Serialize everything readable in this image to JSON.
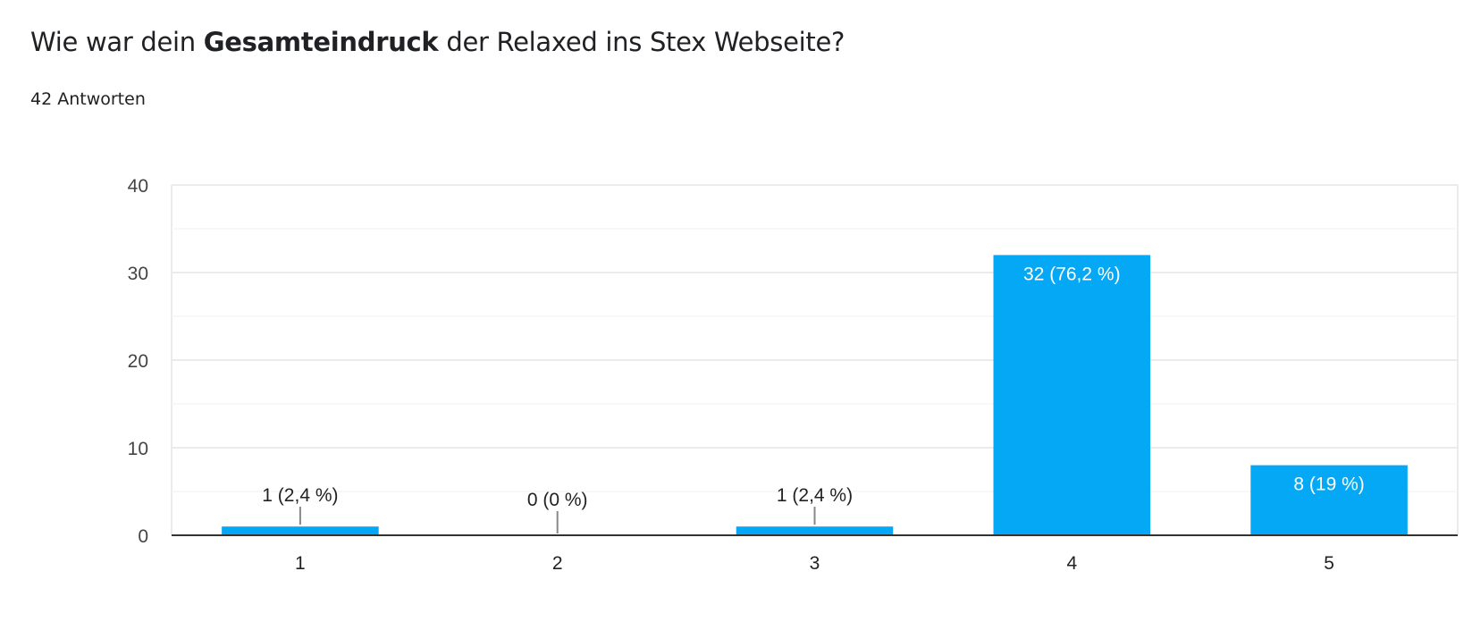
{
  "header": {
    "title_before": "Wie war dein ",
    "title_bold": "Gesamteindruck",
    "title_after": " der Relaxed ins Stex Webseite?",
    "response_count": "42 Antworten"
  },
  "colors": {
    "bar": "#05a8f4",
    "grid": "#ebebeb",
    "axis": "#333333"
  },
  "chart_data": {
    "type": "bar",
    "title": "Wie war dein Gesamteindruck der Relaxed ins Stex Webseite?",
    "categories": [
      "1",
      "2",
      "3",
      "4",
      "5"
    ],
    "values": [
      1,
      0,
      1,
      32,
      8
    ],
    "data_labels": [
      "1 (2,4 %)",
      "0 (0 %)",
      "1 (2,4 %)",
      "32 (76,2 %)",
      "8 (19 %)"
    ],
    "y_ticks": [
      "0",
      "10",
      "20",
      "30",
      "40"
    ],
    "ylim": [
      0,
      40
    ],
    "xlabel": "",
    "ylabel": "",
    "grid": true
  }
}
